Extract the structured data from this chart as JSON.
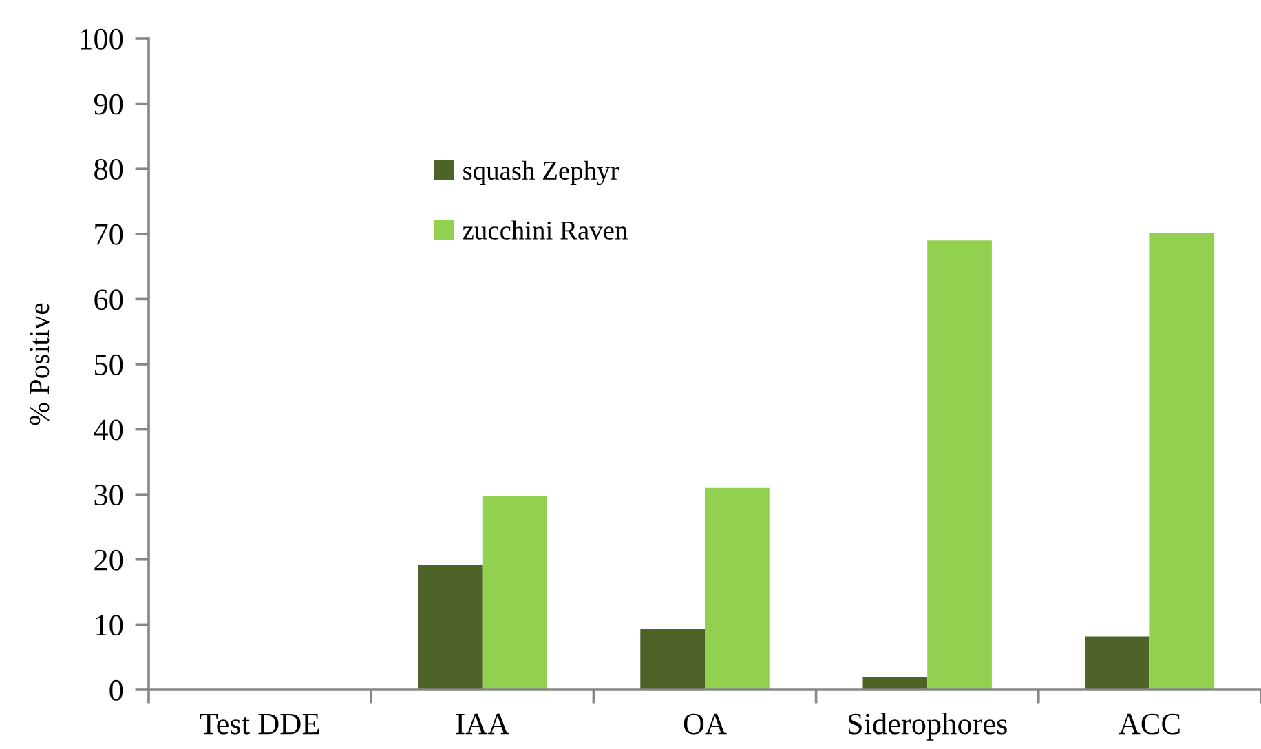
{
  "chart_data": {
    "type": "bar",
    "ylabel": "% Positive",
    "categories": [
      "Test DDE",
      "IAA",
      "OA",
      "Siderophores",
      "ACC"
    ],
    "series": [
      {
        "name": "squash Zephyr",
        "color": "#4f6228",
        "values": [
          0,
          19.2,
          9.4,
          2.0,
          8.2
        ]
      },
      {
        "name": "zucchini Raven",
        "color": "#92d050",
        "values": [
          0,
          29.8,
          31.0,
          69.0,
          70.2
        ]
      }
    ],
    "ylim": [
      0,
      100
    ],
    "yticks": [
      0,
      10,
      20,
      30,
      40,
      50,
      60,
      70,
      80,
      90,
      100
    ],
    "grid": false,
    "legend": "top left"
  }
}
